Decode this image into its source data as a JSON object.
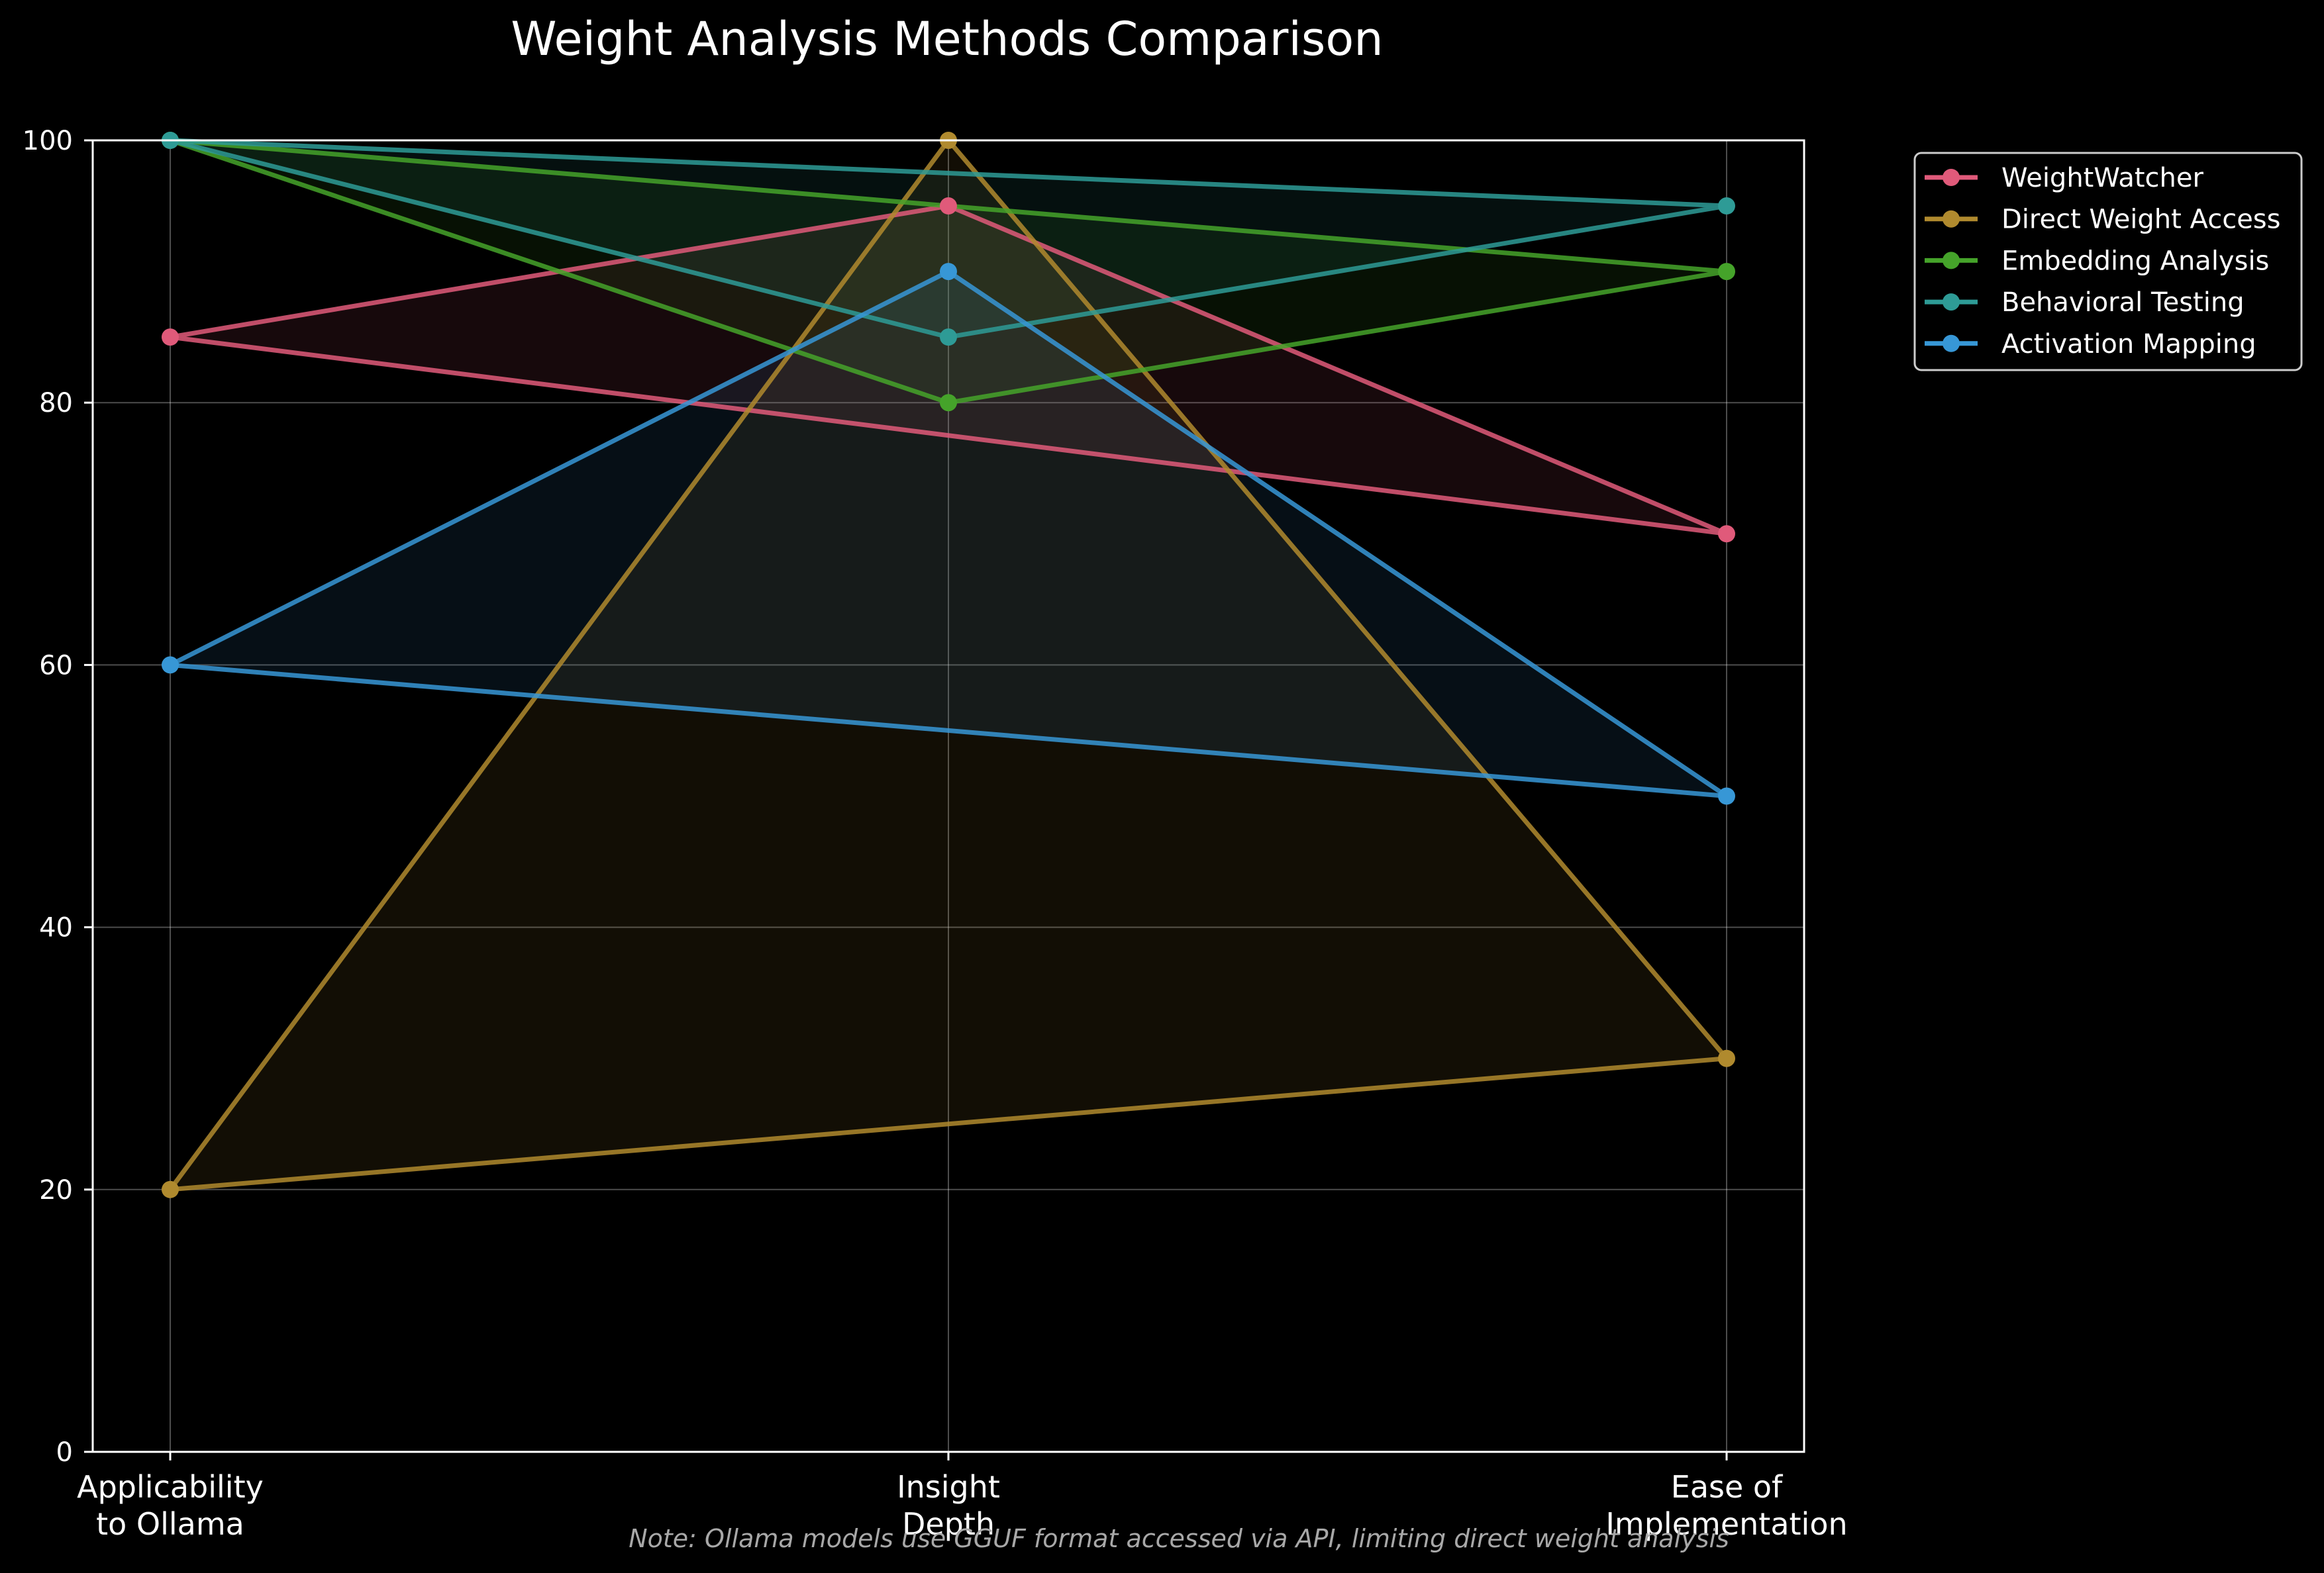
{
  "chart_data": {
    "type": "line",
    "title": "Weight Analysis Methods Comparison",
    "categories": [
      "Applicability\nto Ollama",
      "Insight\nDepth",
      "Ease of\nImplementation"
    ],
    "ylim": [
      0,
      100
    ],
    "yticks": [
      0,
      20,
      40,
      60,
      80,
      100
    ],
    "grid": true,
    "legend_position": "outside-top-right",
    "series": [
      {
        "name": "WeightWatcher",
        "values": [
          85,
          95,
          70
        ],
        "color": "#e05a7a"
      },
      {
        "name": "Direct Weight Access",
        "values": [
          20,
          100,
          30
        ],
        "color": "#b08a2e"
      },
      {
        "name": "Embedding Analysis",
        "values": [
          100,
          80,
          90
        ],
        "color": "#45a32a"
      },
      {
        "name": "Behavioral Testing",
        "values": [
          100,
          85,
          95
        ],
        "color": "#2e9b96"
      },
      {
        "name": "Activation Mapping",
        "values": [
          60,
          90,
          50
        ],
        "color": "#3797d6"
      }
    ],
    "note": "Note: Ollama models use GGUF format accessed via API, limiting direct weight analysis"
  }
}
